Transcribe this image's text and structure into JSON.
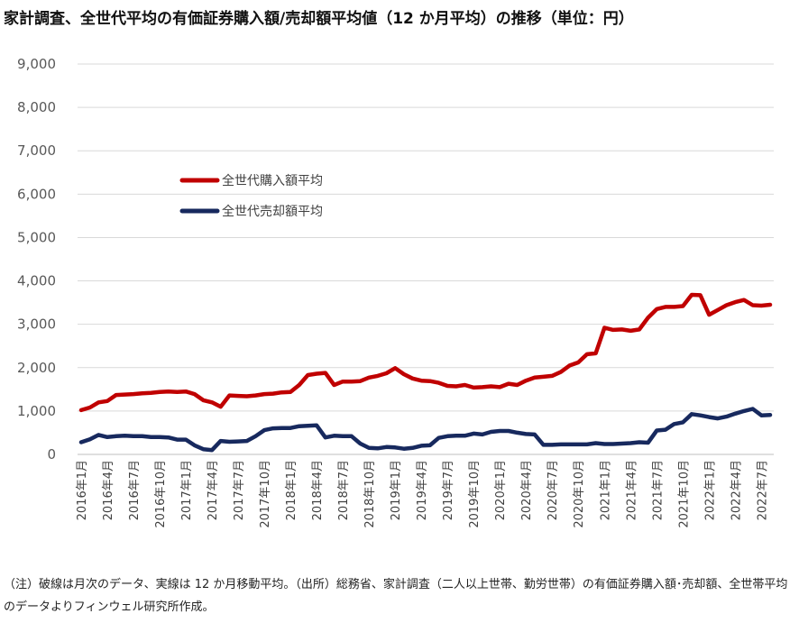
{
  "chart_data": {
    "type": "line",
    "title": "家計調査、全世代平均の有価証券購入額/売却額平均値（12 か月平均）の推移（単位：円）",
    "ylim": [
      0,
      9000
    ],
    "yticks": [
      "0",
      "1,000",
      "2,000",
      "3,000",
      "4,000",
      "5,000",
      "6,000",
      "7,000",
      "8,000",
      "9,000"
    ],
    "grid": true,
    "legend_position": "upper-left",
    "x": [
      "2016年1月",
      "2016年2月",
      "2016年3月",
      "2016年4月",
      "2016年5月",
      "2016年6月",
      "2016年7月",
      "2016年8月",
      "2016年9月",
      "2016年10月",
      "2016年11月",
      "2016年12月",
      "2017年1月",
      "2017年2月",
      "2017年3月",
      "2017年4月",
      "2017年5月",
      "2017年6月",
      "2017年7月",
      "2017年8月",
      "2017年9月",
      "2017年10月",
      "2017年11月",
      "2017年12月",
      "2018年1月",
      "2018年2月",
      "2018年3月",
      "2018年4月",
      "2018年5月",
      "2018年6月",
      "2018年7月",
      "2018年8月",
      "2018年9月",
      "2018年10月",
      "2018年11月",
      "2018年12月",
      "2019年1月",
      "2019年2月",
      "2019年3月",
      "2019年4月",
      "2019年5月",
      "2019年6月",
      "2019年7月",
      "2019年8月",
      "2019年9月",
      "2019年10月",
      "2019年11月",
      "2019年12月",
      "2020年1月",
      "2020年2月",
      "2020年3月",
      "2020年4月",
      "2020年5月",
      "2020年6月",
      "2020年7月",
      "2020年8月",
      "2020年9月",
      "2020年10月",
      "2020年11月",
      "2020年12月",
      "2021年1月",
      "2021年2月",
      "2021年3月",
      "2021年4月",
      "2021年5月",
      "2021年6月",
      "2021年7月",
      "2021年8月",
      "2021年9月",
      "2021年10月",
      "2021年11月",
      "2021年12月",
      "2022年1月",
      "2022年2月",
      "2022年3月",
      "2022年4月",
      "2022年5月",
      "2022年6月",
      "2022年7月",
      "2022年8月"
    ],
    "x_tick_labels": [
      "2016年1月",
      "2016年4月",
      "2016年7月",
      "2016年10月",
      "2017年1月",
      "2017年4月",
      "2017年7月",
      "2017年10月",
      "2018年1月",
      "2018年4月",
      "2018年7月",
      "2018年10月",
      "2019年1月",
      "2019年4月",
      "2019年7月",
      "2019年10月",
      "2020年1月",
      "2020年4月",
      "2020年7月",
      "2020年10月",
      "2021年1月",
      "2021年4月",
      "2021年7月",
      "2021年10月",
      "2022年1月",
      "2022年4月",
      "2022年7月"
    ],
    "series": [
      {
        "name": "全世代購入額平均",
        "color": "#C00000",
        "values": [
          1020,
          1080,
          1200,
          1230,
          1370,
          1380,
          1390,
          1410,
          1420,
          1440,
          1450,
          1440,
          1450,
          1390,
          1250,
          1200,
          1100,
          1360,
          1350,
          1340,
          1360,
          1390,
          1400,
          1430,
          1440,
          1600,
          1830,
          1860,
          1880,
          1600,
          1680,
          1680,
          1690,
          1770,
          1810,
          1870,
          1990,
          1850,
          1750,
          1700,
          1690,
          1650,
          1580,
          1570,
          1600,
          1540,
          1550,
          1570,
          1550,
          1630,
          1600,
          1700,
          1770,
          1790,
          1810,
          1900,
          2050,
          2120,
          2310,
          2330,
          2920,
          2870,
          2880,
          2850,
          2880,
          3150,
          3350,
          3400,
          3400,
          3420,
          3680,
          3670,
          3220,
          3330,
          3440,
          3510,
          3560,
          3440,
          3430,
          3450
        ]
      },
      {
        "name": "全世代売却額平均",
        "color": "#17295E",
        "values": [
          280,
          350,
          450,
          400,
          420,
          430,
          420,
          420,
          400,
          400,
          390,
          340,
          340,
          210,
          120,
          100,
          310,
          290,
          300,
          310,
          420,
          560,
          600,
          610,
          610,
          650,
          660,
          670,
          390,
          430,
          420,
          420,
          250,
          150,
          140,
          170,
          160,
          130,
          150,
          200,
          210,
          380,
          420,
          430,
          430,
          480,
          460,
          520,
          540,
          540,
          500,
          470,
          460,
          220,
          220,
          230,
          230,
          230,
          230,
          260,
          240,
          240,
          250,
          260,
          280,
          270,
          550,
          570,
          700,
          740,
          930,
          900,
          860,
          830,
          870,
          940,
          1000,
          1050,
          900,
          910
        ]
      }
    ]
  },
  "note": "（注）破線は月次のデータ、実線は 12 か月移動平均。（出所）総務省、家計調査（二人以上世帯、勤労世帯）の有価証券購入額･売却額、全世帯平均のデータよりフィンウェル研究所作成。"
}
